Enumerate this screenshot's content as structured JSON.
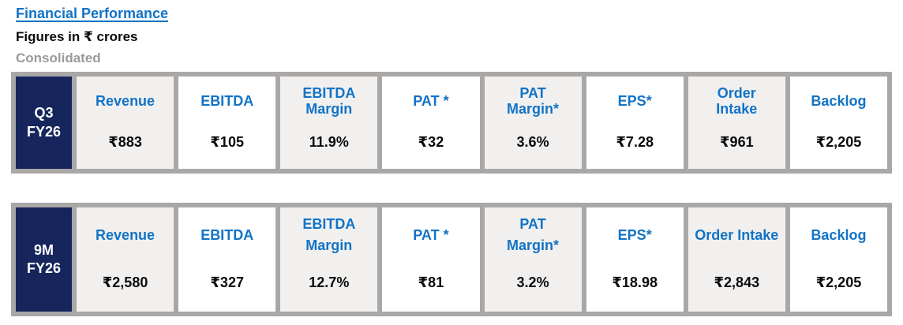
{
  "header": {
    "title": "Financial Performance",
    "subtitle": "Figures in ₹ crores",
    "note": "Consolidated"
  },
  "colors": {
    "accent_blue": "#1273C6",
    "navy": "#16265C",
    "frame_gray": "#AAA7A7",
    "cell_gray": "#F1F0EF",
    "note_gray": "#9B9B9B"
  },
  "tables": [
    {
      "period": "Q3\nFY26",
      "cells": [
        {
          "label": "Revenue",
          "value": "₹883"
        },
        {
          "label": "EBITDA",
          "value": "₹105"
        },
        {
          "label": "EBITDA\nMargin",
          "value": "11.9%"
        },
        {
          "label": "PAT *",
          "value": "₹32"
        },
        {
          "label": "PAT\nMargin*",
          "value": "3.6%"
        },
        {
          "label": "EPS*",
          "value": "₹7.28"
        },
        {
          "label": "Order\nIntake",
          "value": "₹961"
        },
        {
          "label": "Backlog",
          "value": "₹2,205"
        }
      ]
    },
    {
      "period": "9M\nFY26",
      "cells": [
        {
          "label": "Revenue",
          "value": "₹2,580"
        },
        {
          "label": "EBITDA",
          "value": "₹327"
        },
        {
          "label": "EBITDA\nMargin",
          "value": "12.7%"
        },
        {
          "label": "PAT *",
          "value": "₹81"
        },
        {
          "label": "PAT\nMargin*",
          "value": "3.2%"
        },
        {
          "label": "EPS*",
          "value": "₹18.98"
        },
        {
          "label": "Order Intake",
          "value": "₹2,843"
        },
        {
          "label": "Backlog",
          "value": "₹2,205"
        }
      ]
    }
  ]
}
